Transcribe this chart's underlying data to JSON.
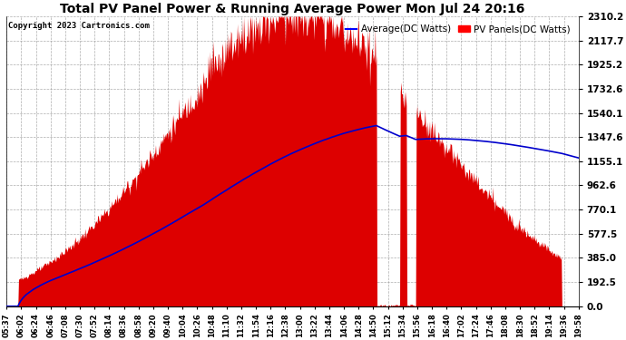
{
  "title": "Total PV Panel Power & Running Average Power Mon Jul 24 20:16",
  "copyright": "Copyright 2023 Cartronics.com",
  "legend_avg": "Average(DC Watts)",
  "legend_pv": "PV Panels(DC Watts)",
  "ymin": 0.0,
  "ymax": 2310.2,
  "yticks": [
    0.0,
    192.5,
    385.0,
    577.5,
    770.1,
    962.6,
    1155.1,
    1347.6,
    1540.1,
    1732.6,
    1925.2,
    2117.7,
    2310.2
  ],
  "xtick_labels": [
    "05:37",
    "06:02",
    "06:24",
    "06:46",
    "07:08",
    "07:30",
    "07:52",
    "08:14",
    "08:36",
    "08:58",
    "09:20",
    "09:40",
    "10:04",
    "10:26",
    "10:48",
    "11:10",
    "11:32",
    "11:54",
    "12:16",
    "12:38",
    "13:00",
    "13:22",
    "13:44",
    "14:06",
    "14:28",
    "14:50",
    "15:12",
    "15:34",
    "15:56",
    "16:18",
    "16:40",
    "17:02",
    "17:24",
    "17:46",
    "18:08",
    "18:30",
    "18:52",
    "19:14",
    "19:36",
    "19:58"
  ],
  "background_color": "#ffffff",
  "pv_color": "#dd0000",
  "avg_color": "#0000cc",
  "grid_color": "#999999",
  "title_color": "#000000",
  "copyright_color": "#000000",
  "legend_avg_color": "#0000ff",
  "legend_pv_color": "#ff0000"
}
